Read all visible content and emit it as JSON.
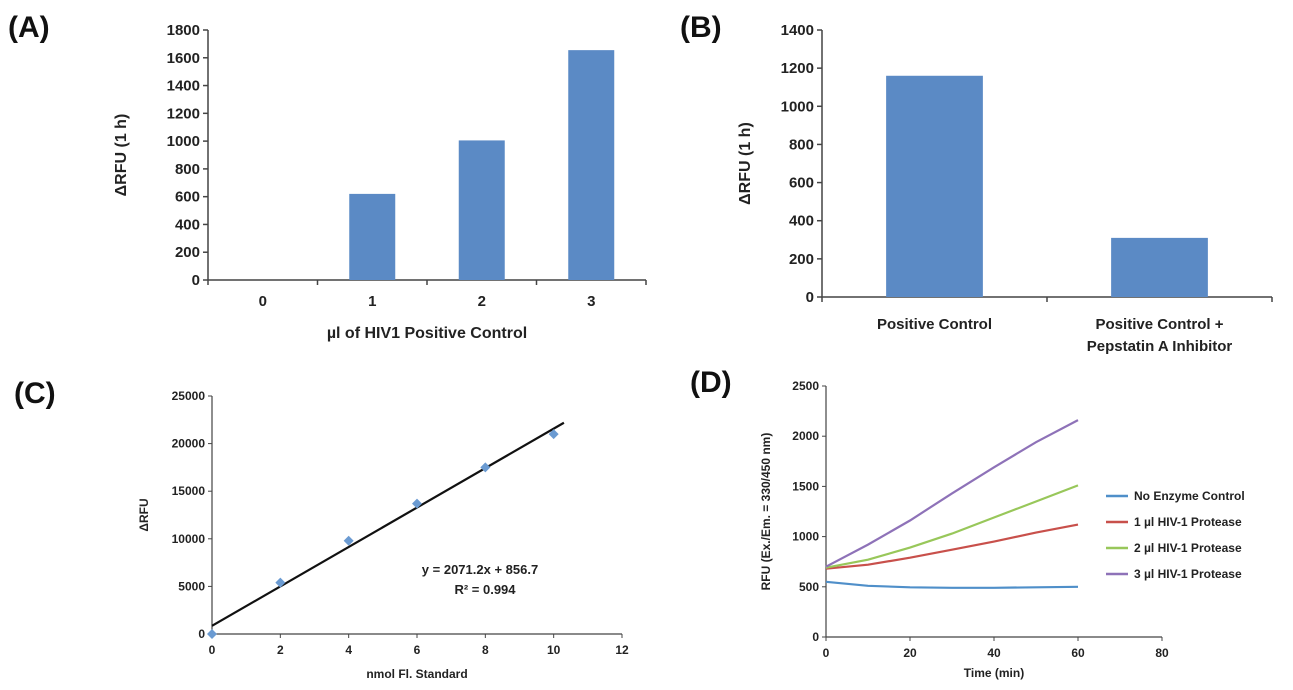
{
  "panels": [
    "(A)",
    "(B)",
    "(C)",
    "(D)"
  ],
  "chart_data": [
    {
      "panel": "(A)",
      "type": "bar",
      "categories": [
        "0",
        "1",
        "2",
        "3"
      ],
      "values": [
        0,
        620,
        1005,
        1655
      ],
      "xlabel": "µl of HIV1 Positive Control",
      "ylabel": "ΔRFU (1 h)",
      "ylim": [
        0,
        1800
      ],
      "yticks": [
        0,
        200,
        400,
        600,
        800,
        1000,
        1200,
        1400,
        1600,
        1800
      ],
      "color": "#5b8ac5",
      "grid": false
    },
    {
      "panel": "(B)",
      "type": "bar",
      "categories": [
        "Positive Control",
        "Positive Control + Pepstatin A Inhibitor"
      ],
      "category_lines": [
        [
          "Positive Control"
        ],
        [
          "Positive Control +",
          "Pepstatin A Inhibitor"
        ]
      ],
      "values": [
        1160,
        310
      ],
      "xlabel": "",
      "ylabel": "ΔRFU (1 h)",
      "ylim": [
        0,
        1400
      ],
      "yticks": [
        0,
        200,
        400,
        600,
        800,
        1000,
        1200,
        1400
      ],
      "color": "#5b8ac5",
      "grid": false
    },
    {
      "panel": "(C)",
      "type": "scatter",
      "points": [
        [
          0,
          0
        ],
        [
          2,
          5400
        ],
        [
          4,
          9800
        ],
        [
          6,
          13700
        ],
        [
          8,
          17500
        ],
        [
          10,
          21000
        ]
      ],
      "fit": {
        "slope": 2071.2,
        "intercept": 856.7
      },
      "equation": "y = 2071.2x + 856.7",
      "r2": "R² = 0.994",
      "xlabel": "nmol Fl. Standard",
      "ylabel": "ΔRFU",
      "xlim": [
        0,
        12
      ],
      "ylim": [
        0,
        25000
      ],
      "xticks": [
        0,
        2,
        4,
        6,
        8,
        10,
        12
      ],
      "yticks": [
        0,
        5000,
        10000,
        15000,
        20000,
        25000
      ],
      "marker_color": "#6b9bd2",
      "line_color": "#111111",
      "grid": false
    },
    {
      "panel": "(D)",
      "type": "line",
      "xlabel": "Time (min)",
      "ylabel": "RFU (Ex./Em. = 330/450 nm)",
      "xlim": [
        0,
        80
      ],
      "ylim": [
        0,
        2500
      ],
      "xticks": [
        0,
        20,
        40,
        60,
        80
      ],
      "yticks": [
        0,
        500,
        1000,
        1500,
        2000,
        2500
      ],
      "legend_position": "right",
      "series": [
        {
          "name": "No Enzyme Control",
          "color": "#4f8fc9",
          "x": [
            0,
            10,
            20,
            30,
            40,
            50,
            60
          ],
          "y": [
            550,
            510,
            495,
            490,
            490,
            495,
            500
          ]
        },
        {
          "name": "1 µl HIV-1 Protease",
          "color": "#c8504b",
          "x": [
            0,
            10,
            20,
            30,
            40,
            50,
            60
          ],
          "y": [
            680,
            720,
            790,
            870,
            950,
            1040,
            1120
          ]
        },
        {
          "name": "2 µl HIV-1 Protease",
          "color": "#98c75a",
          "x": [
            0,
            10,
            20,
            30,
            40,
            50,
            60
          ],
          "y": [
            690,
            770,
            890,
            1030,
            1190,
            1350,
            1510
          ]
        },
        {
          "name": "3 µl HIV-1 Protease",
          "color": "#8e72b8",
          "x": [
            0,
            10,
            20,
            30,
            40,
            50,
            60
          ],
          "y": [
            700,
            920,
            1160,
            1430,
            1690,
            1940,
            2160
          ]
        }
      ],
      "grid": false
    }
  ]
}
